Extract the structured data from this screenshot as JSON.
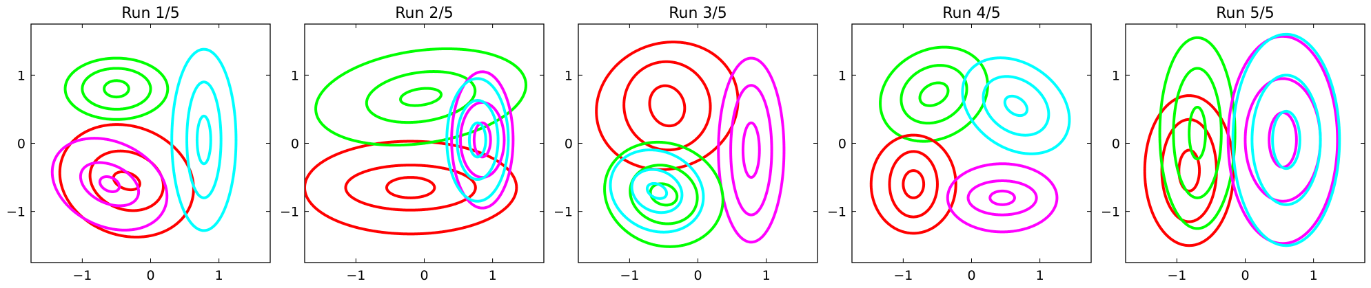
{
  "chart_data": [
    {
      "type": "contour",
      "title": "Run 1/5",
      "xlim": [
        -1.75,
        1.75
      ],
      "ylim": [
        -1.75,
        1.75
      ],
      "xticks": [
        -1,
        0,
        1
      ],
      "yticks": [
        -1,
        0,
        1
      ],
      "xtick_labels": [
        "−1",
        "0",
        "1"
      ],
      "ytick_labels": [
        "−1",
        "0",
        "1"
      ],
      "components": [
        {
          "color": "#ff0000",
          "center": [
            -0.35,
            -0.55
          ],
          "angle": -20,
          "axes": [
            [
              0.2,
              0.12
            ],
            [
              0.55,
              0.42
            ],
            [
              1.0,
              0.8
            ]
          ]
        },
        {
          "color": "#ff00ff",
          "center": [
            -0.6,
            -0.6
          ],
          "angle": -25,
          "axes": [
            [
              0.15,
              0.1
            ],
            [
              0.45,
              0.28
            ],
            [
              0.88,
              0.62
            ]
          ]
        },
        {
          "color": "#00ff00",
          "center": [
            -0.5,
            0.8
          ],
          "angle": 0,
          "axes": [
            [
              0.18,
              0.12
            ],
            [
              0.5,
              0.3
            ],
            [
              0.75,
              0.45
            ]
          ]
        },
        {
          "color": "#00ffff",
          "center": [
            0.78,
            0.05
          ],
          "angle": 0,
          "axes": [
            [
              0.1,
              0.35
            ],
            [
              0.25,
              0.85
            ],
            [
              0.47,
              1.33
            ]
          ]
        }
      ]
    },
    {
      "type": "contour",
      "title": "Run 2/5",
      "xlim": [
        -1.75,
        1.75
      ],
      "ylim": [
        -1.75,
        1.75
      ],
      "xticks": [
        -1,
        0,
        1
      ],
      "yticks": [
        -1,
        0,
        1
      ],
      "xtick_labels": [
        "−1",
        "0",
        "1"
      ],
      "ytick_labels": [
        "−1",
        "0",
        "1"
      ],
      "components": [
        {
          "color": "#ff0000",
          "center": [
            -0.2,
            -0.65
          ],
          "angle": 0,
          "axes": [
            [
              0.35,
              0.15
            ],
            [
              0.95,
              0.33
            ],
            [
              1.55,
              0.68
            ]
          ]
        },
        {
          "color": "#00ff00",
          "center": [
            -0.05,
            0.68
          ],
          "angle": 8,
          "axes": [
            [
              0.3,
              0.12
            ],
            [
              0.8,
              0.36
            ],
            [
              1.55,
              0.68
            ]
          ]
        },
        {
          "color": "#ff00ff",
          "center": [
            0.85,
            0.05
          ],
          "angle": 0,
          "axes": [
            [
              0.12,
              0.25
            ],
            [
              0.32,
              0.55
            ],
            [
              0.45,
              1.0
            ]
          ]
        },
        {
          "color": "#00ffff",
          "center": [
            0.78,
            0.05
          ],
          "angle": 0,
          "axes": [
            [
              0.12,
              0.25
            ],
            [
              0.3,
              0.58
            ],
            [
              0.45,
              0.9
            ]
          ]
        }
      ]
    },
    {
      "type": "contour",
      "title": "Run 3/5",
      "xlim": [
        -1.75,
        1.75
      ],
      "ylim": [
        -1.75,
        1.75
      ],
      "xticks": [
        -1,
        0,
        1
      ],
      "yticks": [
        -1,
        0,
        1
      ],
      "xtick_labels": [
        "−1",
        "0",
        "1"
      ],
      "ytick_labels": [
        "−1",
        "0",
        "1"
      ],
      "components": [
        {
          "color": "#ff0000",
          "center": [
            -0.45,
            0.55
          ],
          "angle": 20,
          "axes": [
            [
              0.25,
              0.3
            ],
            [
              0.63,
              0.65
            ],
            [
              1.05,
              0.92
            ]
          ]
        },
        {
          "color": "#ff00ff",
          "center": [
            0.78,
            -0.1
          ],
          "angle": 0,
          "axes": [
            [
              0.12,
              0.4
            ],
            [
              0.3,
              0.95
            ],
            [
              0.48,
              1.35
            ]
          ]
        },
        {
          "color": "#00ff00",
          "center": [
            -0.5,
            -0.75
          ],
          "angle": -20,
          "axes": [
            [
              0.2,
              0.15
            ],
            [
              0.5,
              0.42
            ],
            [
              0.88,
              0.75
            ]
          ]
        },
        {
          "color": "#00ffff",
          "center": [
            -0.6,
            -0.7
          ],
          "angle": -25,
          "axes": [
            [
              0.15,
              0.1
            ],
            [
              0.38,
              0.3
            ],
            [
              0.7,
              0.58
            ]
          ]
        }
      ]
    },
    {
      "type": "contour",
      "title": "Run 4/5",
      "xlim": [
        -1.75,
        1.75
      ],
      "ylim": [
        -1.75,
        1.75
      ],
      "xticks": [
        -1,
        0,
        1
      ],
      "yticks": [
        -1,
        0,
        1
      ],
      "xtick_labels": [
        "−1",
        "0",
        "1"
      ],
      "ytick_labels": [
        "−1",
        "0",
        "1"
      ],
      "components": [
        {
          "color": "#00ff00",
          "center": [
            -0.55,
            0.72
          ],
          "angle": 28,
          "axes": [
            [
              0.22,
              0.15
            ],
            [
              0.5,
              0.4
            ],
            [
              0.82,
              0.65
            ]
          ]
        },
        {
          "color": "#00ffff",
          "center": [
            0.65,
            0.55
          ],
          "angle": -35,
          "axes": [
            [
              0.18,
              0.12
            ],
            [
              0.52,
              0.38
            ],
            [
              0.85,
              0.62
            ]
          ]
        },
        {
          "color": "#ff0000",
          "center": [
            -0.85,
            -0.6
          ],
          "angle": 0,
          "axes": [
            [
              0.15,
              0.2
            ],
            [
              0.35,
              0.48
            ],
            [
              0.62,
              0.72
            ]
          ]
        },
        {
          "color": "#ff00ff",
          "center": [
            0.45,
            -0.8
          ],
          "angle": 0,
          "axes": [
            [
              0.18,
              0.1
            ],
            [
              0.5,
              0.25
            ],
            [
              0.8,
              0.5
            ]
          ]
        }
      ]
    },
    {
      "type": "contour",
      "title": "Run 5/5",
      "xlim": [
        -1.75,
        1.75
      ],
      "ylim": [
        -1.75,
        1.75
      ],
      "xticks": [
        -1,
        0,
        1
      ],
      "yticks": [
        -1,
        0,
        1
      ],
      "xtick_labels": [
        "−1",
        "0",
        "1"
      ],
      "ytick_labels": [
        "−1",
        "0",
        "1"
      ],
      "components": [
        {
          "color": "#ff0000",
          "center": [
            -0.82,
            -0.4
          ],
          "angle": 0,
          "axes": [
            [
              0.15,
              0.3
            ],
            [
              0.4,
              0.75
            ],
            [
              0.65,
              1.1
            ]
          ]
        },
        {
          "color": "#00ff00",
          "center": [
            -0.7,
            0.15
          ],
          "angle": 0,
          "axes": [
            [
              0.12,
              0.38
            ],
            [
              0.35,
              0.95
            ],
            [
              0.55,
              1.4
            ]
          ]
        },
        {
          "color": "#ff00ff",
          "center": [
            0.55,
            0.05
          ],
          "angle": 0,
          "axes": [
            [
              0.2,
              0.4
            ],
            [
              0.55,
              0.9
            ],
            [
              0.8,
              1.52
            ]
          ]
        },
        {
          "color": "#00ffff",
          "center": [
            0.6,
            0.05
          ],
          "angle": 0,
          "axes": [
            [
              0.2,
              0.42
            ],
            [
              0.5,
              0.95
            ],
            [
              0.78,
              1.55
            ]
          ]
        }
      ]
    }
  ]
}
